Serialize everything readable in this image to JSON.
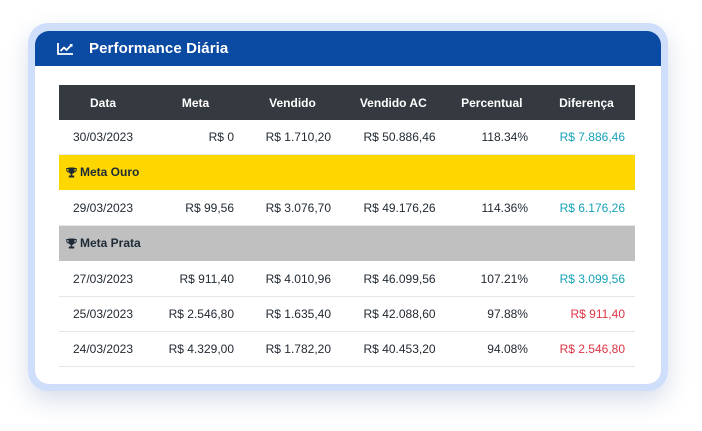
{
  "card": {
    "title": "Performance Diária",
    "icon": "line-chart-icon"
  },
  "table": {
    "headers": [
      "Data",
      "Meta",
      "Vendido",
      "Vendido AC",
      "Percentual",
      "Diferença"
    ],
    "rows": [
      {
        "data": "30/03/2023",
        "meta": "R$ 0",
        "vendido": "R$ 1.710,20",
        "vendido_ac": "R$ 50.886,46",
        "percentual": "118.34%",
        "diferenca": "R$ 7.886,46",
        "status": "positive"
      },
      {
        "separator": "Meta Ouro",
        "icon": "trophy-icon",
        "color": "#FFD700"
      },
      {
        "data": "29/03/2023",
        "meta": "R$ 99,56",
        "vendido": "R$ 3.076,70",
        "vendido_ac": "R$ 49.176,26",
        "percentual": "114.36%",
        "diferenca": "R$ 6.176,26",
        "status": "positive"
      },
      {
        "separator": "Meta Prata",
        "icon": "trophy-icon",
        "color": "#C0C0C0"
      },
      {
        "data": "27/03/2023",
        "meta": "R$ 911,40",
        "vendido": "R$ 4.010,96",
        "vendido_ac": "R$ 46.099,56",
        "percentual": "107.21%",
        "diferenca": "R$ 3.099,56",
        "status": "positive"
      },
      {
        "data": "25/03/2023",
        "meta": "R$ 2.546,80",
        "vendido": "R$ 1.635,40",
        "vendido_ac": "R$ 42.088,60",
        "percentual": "97.88%",
        "diferenca": "R$ 911,40",
        "status": "negative"
      },
      {
        "data": "24/03/2023",
        "meta": "R$ 4.329,00",
        "vendido": "R$ 1.782,20",
        "vendido_ac": "R$ 40.453,20",
        "percentual": "94.08%",
        "diferenca": "R$ 2.546,80",
        "status": "negative"
      }
    ]
  },
  "colors": {
    "header_bg": "#0B4AA2",
    "table_header_bg": "#343A40",
    "positive": "#17A2B8",
    "negative": "#DC3545",
    "gold": "#FFD700",
    "silver": "#C0C0C0"
  }
}
